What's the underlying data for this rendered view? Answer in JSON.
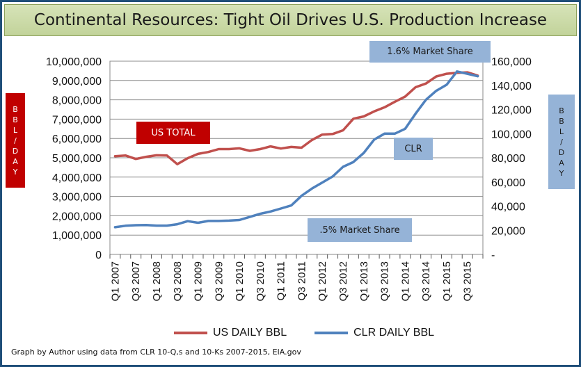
{
  "title": "Continental Resources: Tight Oil Drives U.S. Production Increase",
  "left_axis_label": [
    "B",
    "B",
    "L",
    "/",
    "D",
    "A",
    "Y"
  ],
  "right_axis_label": [
    "B",
    "B",
    "L",
    "/",
    "D",
    "A",
    "Y"
  ],
  "annotations": {
    "us_total": "US TOTAL",
    "clr": "CLR",
    "share_high": "1.6% Market Share",
    "share_low": ".5% Market Share"
  },
  "source_note": "Graph by Author using data from CLR 10-Q,s and 10-Ks 2007-2015, EIA.gov",
  "colors": {
    "us_series": "#c0504d",
    "clr_series": "#4f81bd",
    "red_badge": "#c00000",
    "blue_badge": "#95b3d7",
    "title_fill": "#c8d7a4",
    "frame": "#1f4e79"
  },
  "chart_data": {
    "type": "line",
    "x_tick_labels": [
      "Q1 2007",
      "Q3 2007",
      "Q1 2008",
      "Q3 2008",
      "Q1 2009",
      "Q3 2009",
      "Q1 2010",
      "Q3 2010",
      "Q1 2011",
      "Q3 2011",
      "Q1 2012",
      "Q3 2012",
      "Q1 2013",
      "Q3 2013",
      "Q1 2014",
      "Q3 2014",
      "Q1 2015",
      "Q3 2015"
    ],
    "y_left": {
      "ylim": [
        0,
        10000000
      ],
      "ticks": [
        "0",
        "1,000,000",
        "2,000,000",
        "3,000,000",
        "4,000,000",
        "5,000,000",
        "6,000,000",
        "7,000,000",
        "8,000,000",
        "9,000,000",
        "10,000,000"
      ]
    },
    "y_right": {
      "ylim": [
        0,
        160000
      ],
      "ticks": [
        "-",
        "20,000",
        "40,000",
        "60,000",
        "80,000",
        "100,000",
        "120,000",
        "140,000",
        "160,000"
      ]
    },
    "series": [
      {
        "name": "US DAILY BBL",
        "axis": "left",
        "values": [
          5080000,
          5120000,
          4940000,
          5050000,
          5130000,
          5120000,
          4670000,
          4980000,
          5200000,
          5300000,
          5450000,
          5450000,
          5490000,
          5360000,
          5450000,
          5590000,
          5480000,
          5560000,
          5520000,
          5920000,
          6200000,
          6230000,
          6420000,
          7020000,
          7140000,
          7400000,
          7610000,
          7900000,
          8170000,
          8650000,
          8840000,
          9210000,
          9350000,
          9400000,
          9420000,
          9250000
        ]
      },
      {
        "name": "CLR DAILY BBL",
        "axis": "right",
        "values": [
          22500,
          23700,
          24200,
          24300,
          23800,
          23800,
          25000,
          27500,
          26200,
          27700,
          27700,
          28000,
          28500,
          31000,
          33600,
          35500,
          38000,
          40500,
          48500,
          54500,
          59500,
          64500,
          72500,
          76500,
          84000,
          95000,
          100000,
          100000,
          104000,
          116500,
          128000,
          135500,
          140500,
          151500,
          149500,
          147500
        ]
      }
    ],
    "legend": [
      "US DAILY BBL",
      "CLR DAILY BBL"
    ],
    "legend_position": "bottom",
    "grid": "horizontal"
  }
}
